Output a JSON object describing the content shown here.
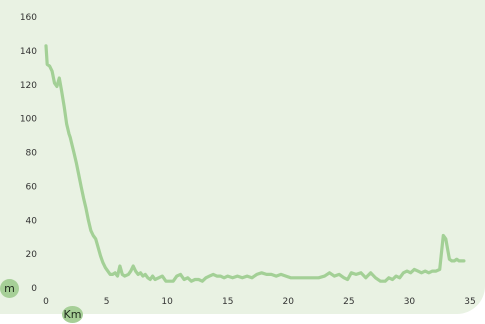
{
  "chart_data": {
    "type": "line",
    "title": "",
    "xlabel": "Km",
    "ylabel": "m",
    "xlim": [
      0,
      35
    ],
    "ylim": [
      0,
      160
    ],
    "x_ticks": [
      0,
      5,
      10,
      15,
      20,
      25,
      30,
      35
    ],
    "y_ticks": [
      0,
      20,
      40,
      60,
      80,
      100,
      120,
      140,
      160
    ],
    "grid": false,
    "legend": "none",
    "colors": {
      "line": "#a3d096",
      "background": "#e9f2e3",
      "unit_badge": "#a6cf97"
    },
    "series": [
      {
        "x": [
          0.0,
          0.1,
          0.3,
          0.5,
          0.7,
          0.9,
          1.1,
          1.3,
          1.5,
          1.7,
          1.8,
          1.9,
          2.0,
          2.1,
          2.3,
          2.5,
          2.7,
          2.9,
          3.1,
          3.3,
          3.5,
          3.7,
          3.9,
          4.1,
          4.3,
          4.5,
          4.7,
          4.9,
          5.1,
          5.3,
          5.5,
          5.7,
          5.9,
          6.1,
          6.3,
          6.5,
          6.8,
          7.0,
          7.2,
          7.4,
          7.6,
          7.8,
          8.0,
          8.2,
          8.4,
          8.6,
          8.8,
          9.0,
          9.3,
          9.6,
          9.9,
          10.2,
          10.5,
          10.8,
          11.1,
          11.4,
          11.7,
          12.0,
          12.3,
          12.6,
          12.9,
          13.2,
          13.5,
          13.8,
          14.1,
          14.4,
          14.7,
          15.0,
          15.4,
          15.8,
          16.2,
          16.6,
          17.0,
          17.4,
          17.8,
          18.2,
          18.6,
          19.0,
          19.4,
          19.8,
          20.2,
          20.6,
          21.0,
          21.5,
          22.0,
          22.5,
          23.0,
          23.4,
          23.8,
          24.2,
          24.6,
          24.9,
          25.2,
          25.6,
          26.0,
          26.4,
          26.8,
          27.2,
          27.6,
          28.0,
          28.3,
          28.6,
          28.9,
          29.2,
          29.5,
          29.8,
          30.1,
          30.4,
          30.7,
          31.0,
          31.3,
          31.6,
          31.9,
          32.2,
          32.5,
          32.8,
          33.0,
          33.1,
          33.3,
          33.5,
          33.7,
          33.9,
          34.1,
          34.3,
          34.5
        ],
        "y": [
          143,
          132,
          131,
          128,
          121,
          119,
          124,
          116,
          107,
          97,
          94,
          91,
          89,
          86,
          80,
          74,
          67,
          60,
          53,
          47,
          40,
          34,
          31,
          29,
          24,
          19,
          15,
          12,
          10,
          8,
          8,
          9,
          7,
          13,
          8,
          7,
          8,
          10,
          13,
          10,
          8,
          9,
          7,
          8,
          6,
          5,
          7,
          5,
          6,
          7,
          4,
          4,
          4,
          7,
          8,
          5,
          6,
          4,
          5,
          5,
          4,
          6,
          7,
          8,
          7,
          7,
          6,
          7,
          6,
          7,
          6,
          7,
          6,
          8,
          9,
          8,
          8,
          7,
          8,
          7,
          6,
          6,
          6,
          6,
          6,
          6,
          7,
          9,
          7,
          8,
          6,
          5,
          9,
          8,
          9,
          6,
          9,
          6,
          4,
          4,
          6,
          5,
          7,
          6,
          9,
          10,
          9,
          11,
          10,
          9,
          10,
          9,
          10,
          10,
          11,
          31,
          29,
          25,
          17,
          16,
          16,
          17,
          16,
          16,
          16
        ]
      }
    ]
  }
}
